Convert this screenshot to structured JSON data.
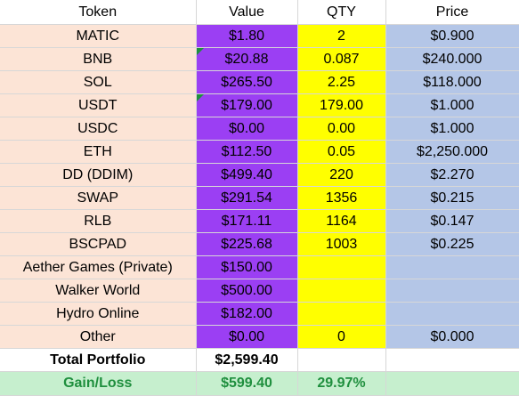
{
  "headers": {
    "token": "Token",
    "value": "Value",
    "qty": "QTY",
    "price": "Price"
  },
  "rows": [
    {
      "token": "MATIC",
      "value": "$1.80",
      "qty": "2",
      "price": "$0.900",
      "flag": false
    },
    {
      "token": "BNB",
      "value": "$20.88",
      "qty": "0.087",
      "price": "$240.000",
      "flag": true
    },
    {
      "token": "SOL",
      "value": "$265.50",
      "qty": "2.25",
      "price": "$118.000",
      "flag": false
    },
    {
      "token": "USDT",
      "value": "$179.00",
      "qty": "179.00",
      "price": "$1.000",
      "flag": true
    },
    {
      "token": "USDC",
      "value": "$0.00",
      "qty": "0.00",
      "price": "$1.000",
      "flag": false
    },
    {
      "token": "ETH",
      "value": "$112.50",
      "qty": "0.05",
      "price": "$2,250.000",
      "flag": false
    },
    {
      "token": "DD (DDIM)",
      "value": "$499.40",
      "qty": "220",
      "price": "$2.270",
      "flag": false
    },
    {
      "token": "SWAP",
      "value": "$291.54",
      "qty": "1356",
      "price": "$0.215",
      "flag": false
    },
    {
      "token": "RLB",
      "value": "$171.11",
      "qty": "1164",
      "price": "$0.147",
      "flag": false
    },
    {
      "token": "BSCPAD",
      "value": "$225.68",
      "qty": "1003",
      "price": "$0.225",
      "flag": false
    },
    {
      "token": "Aether Games (Private)",
      "value": "$150.00",
      "qty": "",
      "price": "",
      "flag": false
    },
    {
      "token": "Walker World",
      "value": "$500.00",
      "qty": "",
      "price": "",
      "flag": false
    },
    {
      "token": "Hydro Online",
      "value": "$182.00",
      "qty": "",
      "price": "",
      "flag": false
    },
    {
      "token": "Other",
      "value": "$0.00",
      "qty": "0",
      "price": "$0.000",
      "flag": false
    }
  ],
  "total": {
    "label": "Total Portfolio",
    "value": "$2,599.40"
  },
  "gain": {
    "label": "Gain/Loss",
    "value": "$599.40",
    "percent": "29.97%"
  },
  "colors": {
    "token_fill": "#fce4d6",
    "value_fill": "#9b3ff3",
    "qty_fill": "#ffff00",
    "price_fill": "#b4c6e7",
    "gain_fill": "#c6efce",
    "gain_text": "#1f8f3e"
  }
}
